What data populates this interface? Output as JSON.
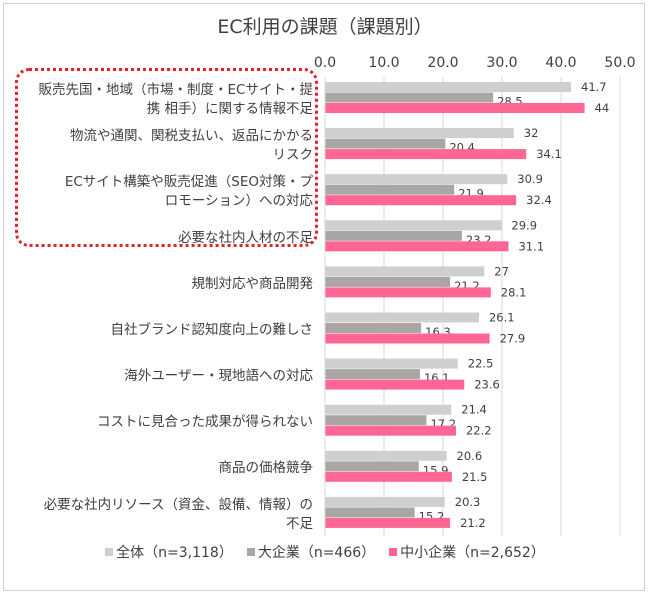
{
  "chart_data": {
    "type": "bar",
    "orientation": "horizontal",
    "title": "EC利用の課題（課題別）",
    "categories": [
      "販売先国・地域（市場・制度・ECサイト・提\n携 相手）に関する情報不足",
      "物流や通関、関税支払い、返品にかかる\nリスク",
      "ECサイト構築や販売促進（SEO対策・プ\nロモーション）への対応",
      "必要な社内人材の不足",
      "規制対応や商品開発",
      "自社ブランド認知度向上の難しさ",
      "海外ユーザー・現地語への対応",
      "コストに見合った成果が得られない",
      "商品の価格競争",
      "必要な社内リソース（資金、設備、情報）の\n不足"
    ],
    "series": [
      {
        "name": "全体（n=3,118）",
        "color": "#d0cfcf",
        "values": [
          41.7,
          32,
          30.9,
          29.9,
          27,
          26.1,
          22.5,
          21.4,
          20.6,
          20.3
        ]
      },
      {
        "name": "大企業（n=466）",
        "color": "#a9a6a5",
        "values": [
          28.5,
          20.4,
          21.9,
          23.2,
          21.2,
          16.3,
          16.1,
          17.2,
          15.9,
          15.2
        ]
      },
      {
        "name": "中小企業（n=2,652）",
        "color": "#ff6693",
        "values": [
          44,
          34.1,
          32.4,
          31.1,
          28.1,
          27.9,
          23.6,
          22.2,
          21.5,
          21.2
        ]
      }
    ],
    "xlim": [
      0,
      50
    ],
    "xticks": [
      "0.0",
      "10.0",
      "20.0",
      "30.0",
      "40.0",
      "50.0"
    ],
    "xaxis_position": "top",
    "grid": true,
    "legend_position": "bottom",
    "highlight": {
      "categories": [
        0,
        1,
        2,
        3
      ],
      "style": "red dotted box"
    }
  }
}
